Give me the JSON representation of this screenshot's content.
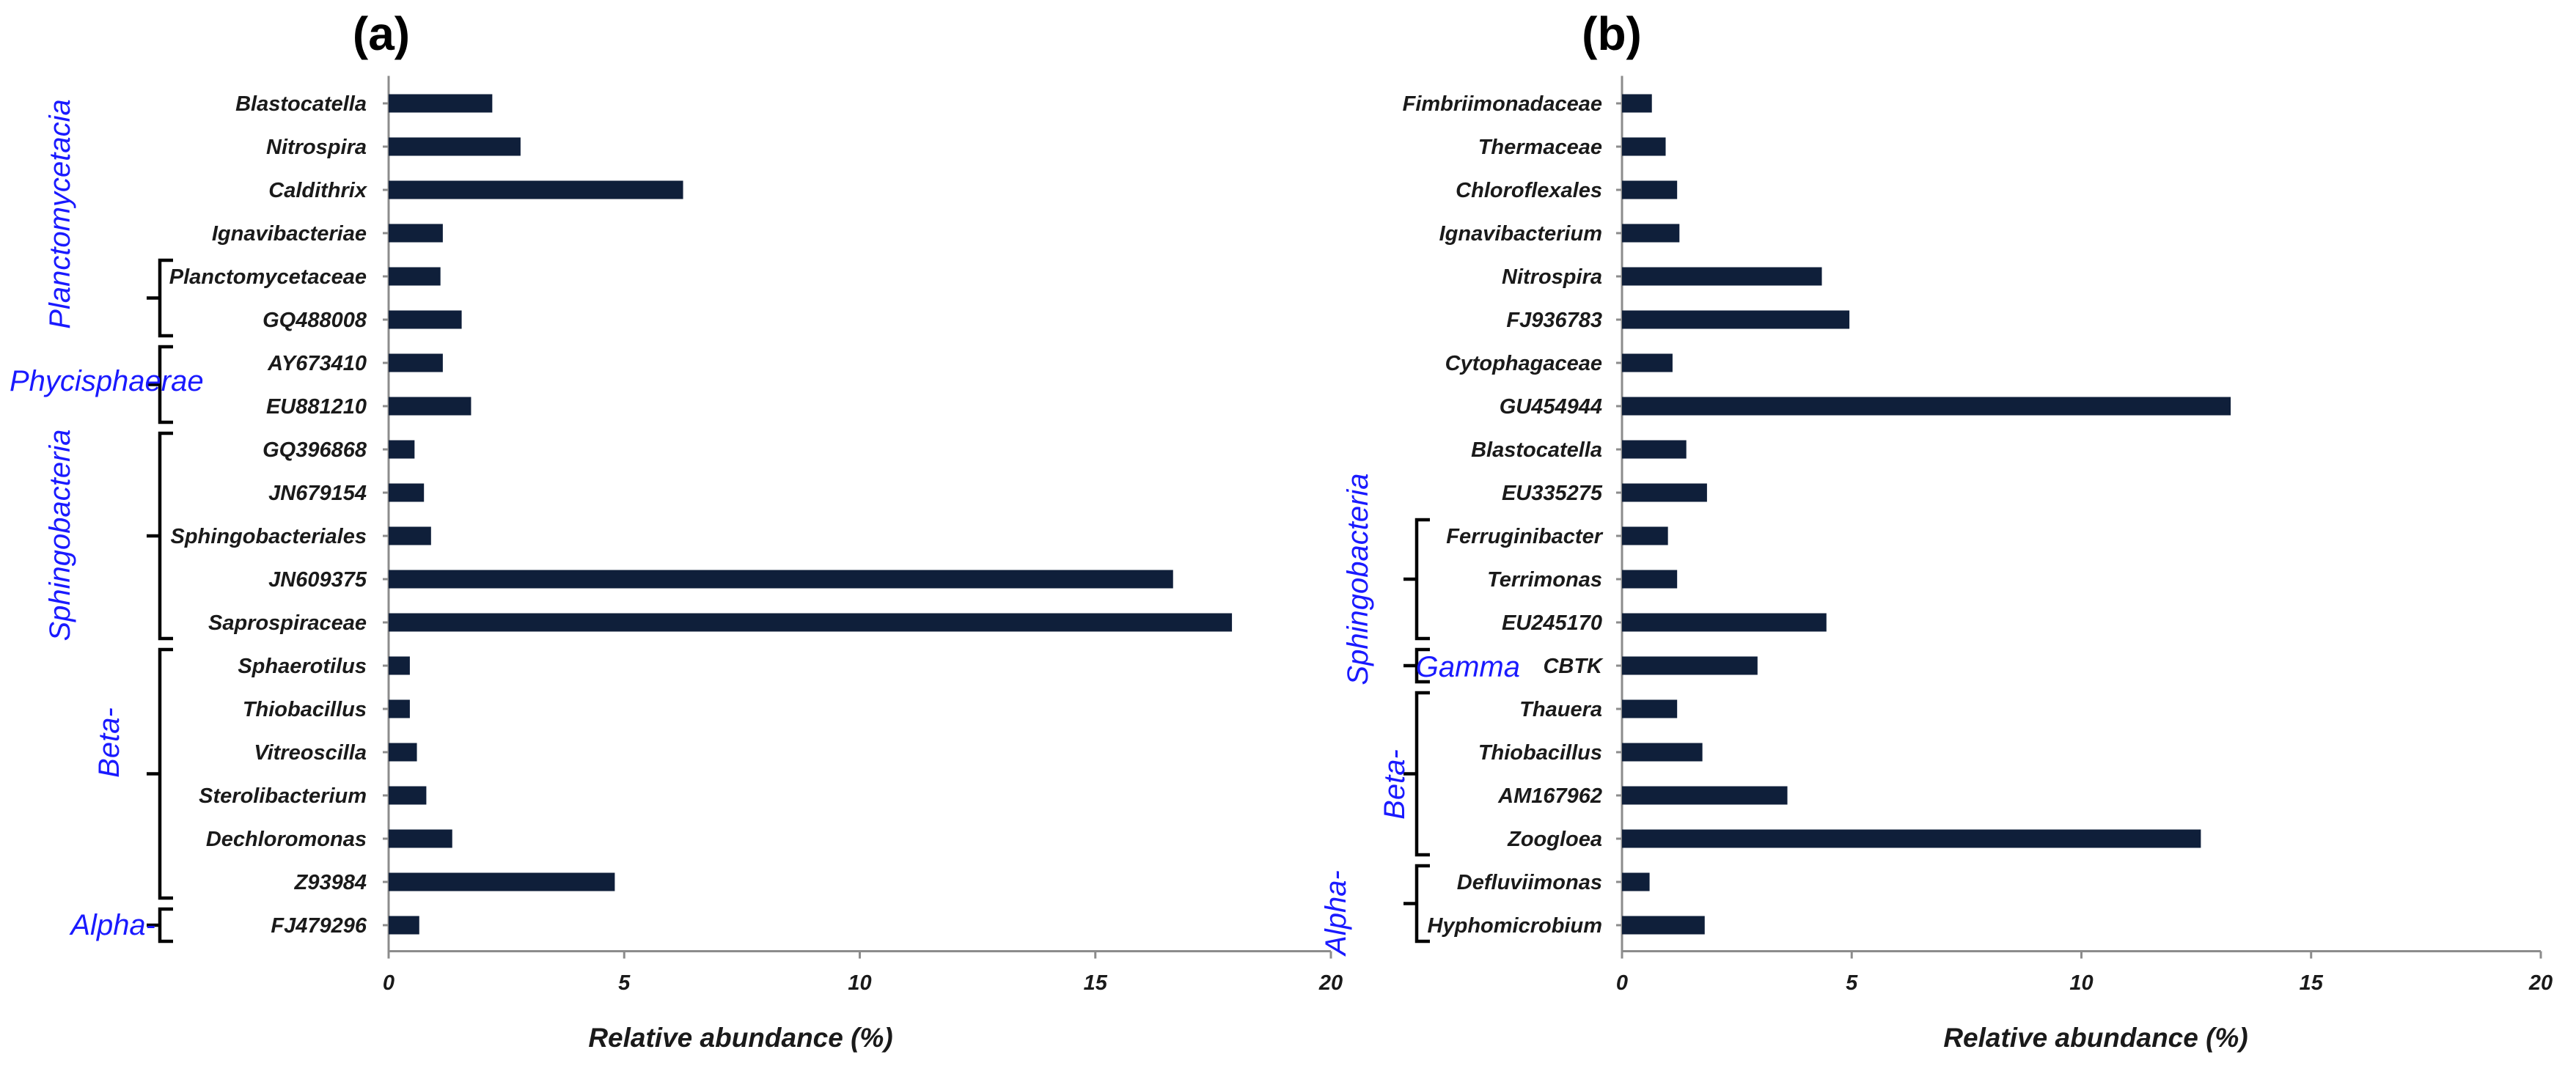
{
  "chart_data": [
    {
      "type": "bar",
      "orientation": "horizontal",
      "title": "(a)",
      "xlabel": "Relative abundance (%)",
      "xlim": [
        0,
        20
      ],
      "xticks": [
        0,
        5,
        10,
        15,
        20
      ],
      "categories": [
        "Blastocatella",
        "Nitrospira",
        "Caldithrix",
        "Ignavibacteriae",
        "Planctomycetaceae",
        "GQ488008",
        "AY673410",
        "EU881210",
        "GQ396868",
        "JN679154",
        "Sphingobacteriales",
        "JN609375",
        "Saprospiraceae",
        "Sphaerotilus",
        "Thiobacillus",
        "Vitreoscilla",
        "Sterolibacterium",
        "Dechloromonas",
        "Z93984",
        "FJ479296"
      ],
      "values": [
        2.2,
        2.8,
        6.25,
        1.15,
        1.1,
        1.55,
        1.15,
        1.75,
        0.55,
        0.75,
        0.9,
        16.65,
        17.9,
        0.45,
        0.45,
        0.6,
        0.8,
        1.35,
        4.8,
        0.65
      ],
      "groups": [
        {
          "label": "Planctomycetacia",
          "from": 4,
          "to": 5
        },
        {
          "label": "Phycisphaerae",
          "from": 6,
          "to": 7
        },
        {
          "label": "Sphingobacteria",
          "from": 8,
          "to": 12
        },
        {
          "label": "Beta-",
          "from": 13,
          "to": 18
        },
        {
          "label": "Alpha-",
          "from": 19,
          "to": 19
        }
      ]
    },
    {
      "type": "bar",
      "orientation": "horizontal",
      "title": "(b)",
      "xlabel": "Relative abundance (%)",
      "xlim": [
        0,
        20
      ],
      "xticks": [
        0,
        5,
        10,
        15,
        20
      ],
      "categories": [
        "Fimbriimonadaceae",
        "Thermaceae",
        "Chloroflexales",
        "Ignavibacterium",
        "Nitrospira",
        "FJ936783",
        "Cytophagaceae",
        "GU454944",
        "Blastocatella",
        "EU335275",
        "Ferruginibacter",
        "Terrimonas",
        "EU245170",
        "CBTK",
        "Thauera",
        "Thiobacillus",
        "AM167962",
        "Zoogloea",
        "Defluviimonas",
        "Hyphomicrobium"
      ],
      "values": [
        0.65,
        0.95,
        1.2,
        1.25,
        4.35,
        4.95,
        1.1,
        13.25,
        1.4,
        1.85,
        1.0,
        1.2,
        4.45,
        2.95,
        1.2,
        1.75,
        3.6,
        12.6,
        0.6,
        1.8
      ],
      "groups": [
        {
          "label": "Sphingobacteria",
          "from": 10,
          "to": 12
        },
        {
          "label": "Gamma",
          "from": 13,
          "to": 13
        },
        {
          "label": "Beta-",
          "from": 14,
          "to": 17
        },
        {
          "label": "Alpha-",
          "from": 18,
          "to": 19
        }
      ]
    }
  ]
}
